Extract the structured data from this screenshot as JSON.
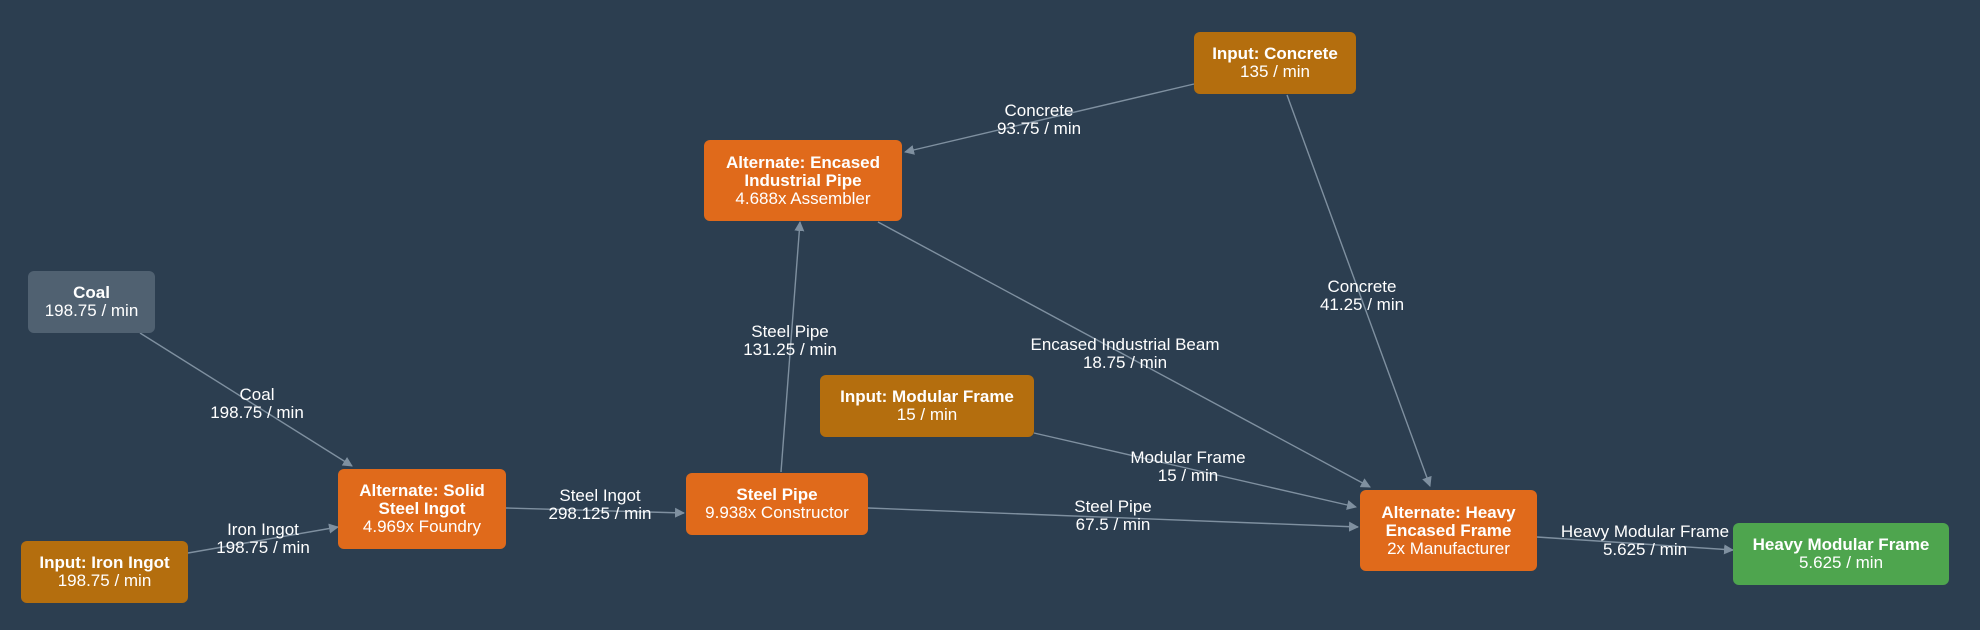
{
  "colors": {
    "background": "#2c3e50",
    "input_node": "#b46e0e",
    "recipe_node": "#e06a1b",
    "raw_node": "#506171",
    "output_node": "#4ea54e",
    "edge": "#7f90a0",
    "text": "#ffffff"
  },
  "nodes": {
    "coal": {
      "title": "Coal",
      "rate": "198.75 / min"
    },
    "input_iron_ingot": {
      "title": "Input: Iron Ingot",
      "rate": "198.75 / min"
    },
    "solid_steel_ingot": {
      "title": "Alternate: Solid Steel Ingot",
      "machine": "4.969x Foundry"
    },
    "steel_pipe": {
      "title": "Steel Pipe",
      "machine": "9.938x Constructor"
    },
    "encased_industrial_pipe": {
      "title": "Alternate: Encased Industrial Pipe",
      "machine": "4.688x Assembler"
    },
    "input_concrete": {
      "title": "Input: Concrete",
      "rate": "135 / min"
    },
    "input_modular_frame": {
      "title": "Input: Modular Frame",
      "rate": "15 / min"
    },
    "heavy_encased_frame": {
      "title": "Alternate: Heavy Encased Frame",
      "machine": "2x Manufacturer"
    },
    "heavy_modular_frame": {
      "title": "Heavy Modular Frame",
      "rate": "5.625 / min"
    }
  },
  "edges": {
    "coal_to_steel": {
      "item": "Coal",
      "rate": "198.75 / min"
    },
    "iron_to_steel": {
      "item": "Iron Ingot",
      "rate": "198.75 / min"
    },
    "steel_to_pipe": {
      "item": "Steel Ingot",
      "rate": "298.125 / min"
    },
    "pipe_to_encased": {
      "item": "Steel Pipe",
      "rate": "131.25 / min"
    },
    "concrete_to_encased": {
      "item": "Concrete",
      "rate": "93.75 / min"
    },
    "concrete_to_heavy": {
      "item": "Concrete",
      "rate": "41.25 / min"
    },
    "encased_to_heavy": {
      "item": "Encased Industrial Beam",
      "rate": "18.75 / min"
    },
    "modular_to_heavy": {
      "item": "Modular Frame",
      "rate": "15 / min"
    },
    "pipe_to_heavy": {
      "item": "Steel Pipe",
      "rate": "67.5 / min"
    },
    "heavy_to_output": {
      "item": "Heavy Modular Frame",
      "rate": "5.625 / min"
    }
  }
}
